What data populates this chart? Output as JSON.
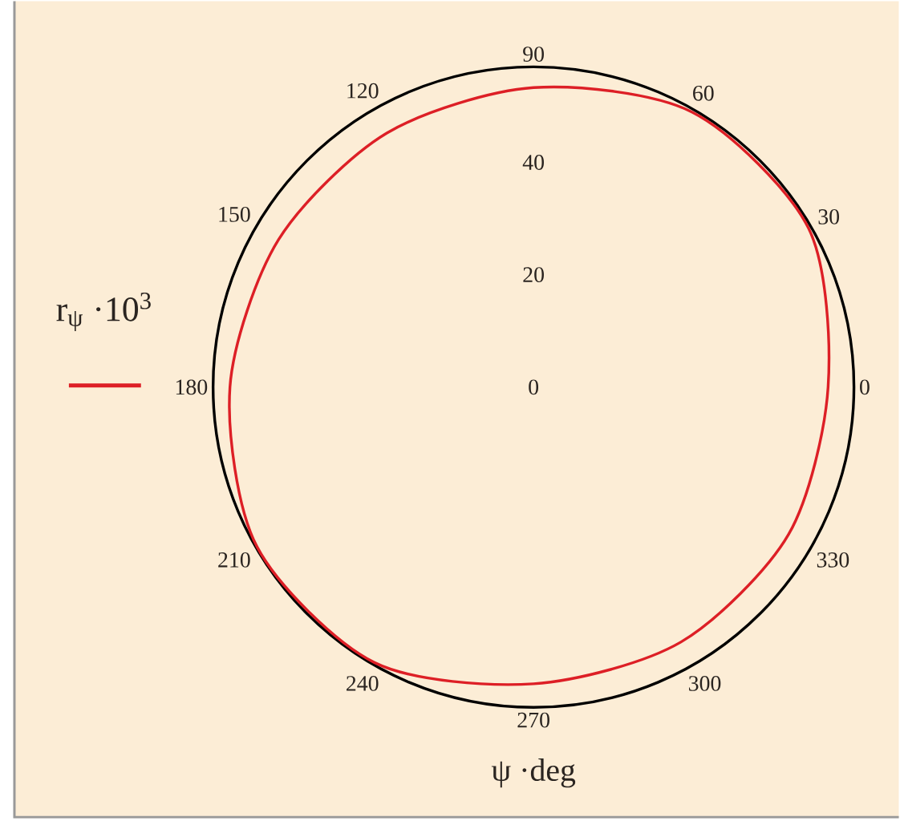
{
  "chart_data": {
    "type": "radar",
    "xlabel": "ψ ·deg",
    "categories": [
      "90",
      "60",
      "30",
      "0",
      "330",
      "300",
      "270",
      "240",
      "210",
      "180",
      "150",
      "120"
    ],
    "series": [
      {
        "name": "r$_{ψ}$ ·10$^{3}$",
        "color": "#dd1f26",
        "values": [
          53.3,
          56.5,
          56.5,
          52.4,
          52.4,
          52.4,
          52.8,
          56.6,
          56.8,
          54.0,
          52.4,
          52.2
        ]
      }
    ],
    "ylim": [
      0,
      57
    ],
    "yticks": [
      0,
      20,
      40
    ],
    "legend": "left"
  }
}
